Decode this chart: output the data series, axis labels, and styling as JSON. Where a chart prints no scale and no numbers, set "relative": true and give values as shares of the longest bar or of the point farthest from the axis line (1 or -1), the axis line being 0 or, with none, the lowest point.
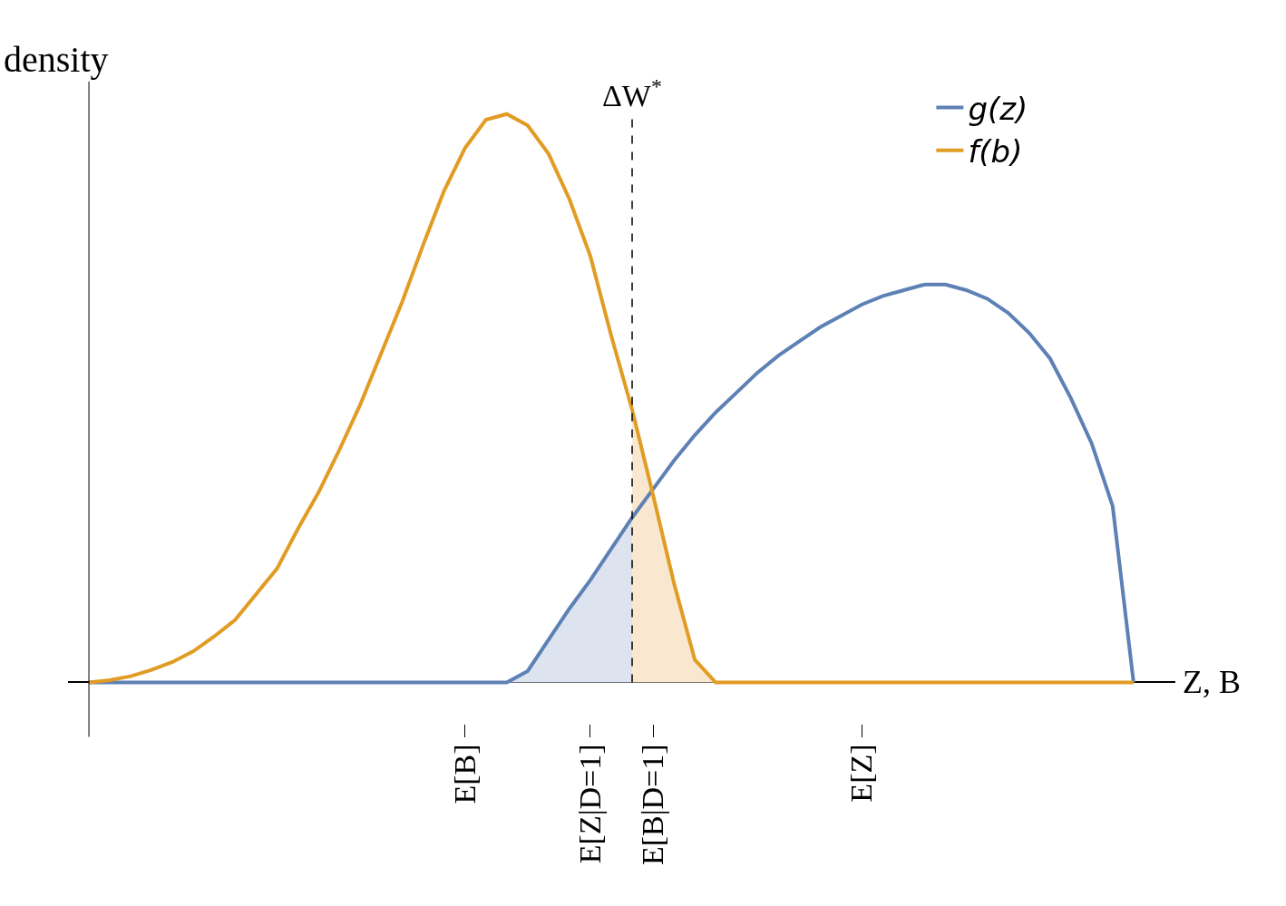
{
  "chart_data": {
    "type": "line",
    "relative": true,
    "ylabel": "density",
    "xlabel": "Z, B",
    "legend": "top right",
    "grid": false,
    "marker": "none",
    "line_style": "solid",
    "categories": [
      null,
      null,
      null,
      null,
      null,
      null,
      null,
      null,
      null,
      null,
      null,
      null,
      null,
      null,
      null,
      null,
      null,
      null,
      "E[B]",
      null,
      null,
      null,
      null,
      null,
      "E[Z|D=1]",
      null,
      null,
      "E[B|D=1]",
      null,
      null,
      null,
      null,
      null,
      null,
      null,
      null,
      null,
      "E[Z]",
      null,
      null,
      null,
      null,
      null,
      null,
      null,
      null,
      null,
      null,
      null,
      null,
      null
    ],
    "series": [
      {
        "type": "area",
        "color": "#dde3ef",
        "values": [
          null,
          null,
          null,
          null,
          null,
          null,
          null,
          null,
          null,
          null,
          null,
          null,
          null,
          null,
          null,
          null,
          null,
          null,
          null,
          null,
          0,
          0.02,
          0.075,
          0.13,
          0.18,
          0.235,
          0.29,
          null,
          null,
          null,
          null,
          null,
          null,
          null,
          null,
          null,
          null,
          null,
          null,
          null,
          null,
          null,
          null,
          null,
          null,
          null,
          null,
          null,
          null,
          null,
          null
        ]
      },
      {
        "type": "area",
        "color": "#f9e8cf",
        "values": [
          null,
          null,
          null,
          null,
          null,
          null,
          null,
          null,
          null,
          null,
          null,
          null,
          null,
          null,
          null,
          null,
          null,
          null,
          null,
          null,
          null,
          null,
          null,
          null,
          null,
          null,
          0.48,
          0.33,
          0.175,
          0.04,
          0,
          null,
          null,
          null,
          null,
          null,
          null,
          null,
          null,
          null,
          null,
          null,
          null,
          null,
          null,
          null,
          null,
          null,
          null,
          null,
          null
        ]
      },
      {
        "name": "g(z)",
        "color": "#5e81b5",
        "values": [
          0,
          0,
          0,
          0,
          0,
          0,
          0,
          0,
          0,
          0,
          0,
          0,
          0,
          0,
          0,
          0,
          0,
          0,
          0,
          0,
          0,
          0.02,
          0.075,
          0.13,
          0.18,
          0.235,
          0.29,
          0.34,
          0.39,
          0.435,
          0.475,
          0.51,
          0.545,
          0.575,
          0.6,
          0.625,
          0.645,
          0.665,
          0.68,
          0.69,
          0.7,
          0.7,
          0.69,
          0.675,
          0.65,
          0.615,
          0.57,
          0.5,
          0.42,
          0.31,
          0
        ]
      },
      {
        "name": "f(b)",
        "color": "#e19c24",
        "values": [
          0,
          0.004,
          0.011,
          0.022,
          0.036,
          0.055,
          0.081,
          0.11,
          0.155,
          0.2,
          0.27,
          0.335,
          0.41,
          0.49,
          0.58,
          0.67,
          0.77,
          0.865,
          0.94,
          0.99,
          1,
          0.98,
          0.93,
          0.85,
          0.75,
          0.61,
          0.48,
          0.33,
          0.175,
          0.04,
          0,
          0,
          0,
          0,
          0,
          0,
          0,
          0,
          0,
          0,
          0,
          0,
          0,
          0,
          0,
          0,
          0,
          0,
          0,
          0,
          0
        ]
      }
    ],
    "annotations": [
      "ΔW$^{*}$"
    ]
  }
}
